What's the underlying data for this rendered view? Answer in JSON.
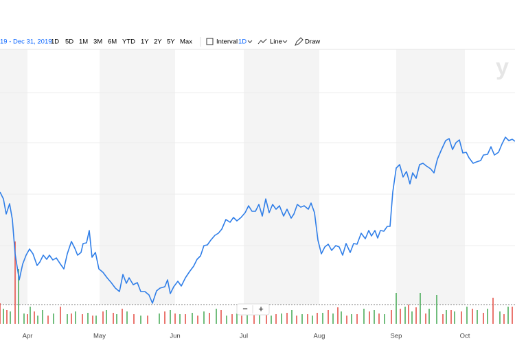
{
  "toolbar": {
    "date_range": "19 - Dec 31, 2019",
    "ranges": [
      "1D",
      "5D",
      "1M",
      "3M",
      "6M",
      "YTD",
      "1Y",
      "2Y",
      "5Y",
      "Max"
    ],
    "interval": "Interval",
    "interval_value": "1D",
    "line": "Line",
    "draw": "Draw"
  },
  "watermark": "y",
  "zoom": {
    "minus": "−",
    "plus": "+"
  },
  "chart_data": {
    "type": "line",
    "color": "#2f7ee8",
    "xlim": [
      0,
      750
    ],
    "ylim": [
      0,
      400
    ],
    "month_labels": [
      "Apr",
      "May",
      "Jun",
      "Jul",
      "Aug",
      "Sep",
      "Oct"
    ],
    "month_x": [
      40,
      145,
      255,
      355,
      465,
      577,
      677
    ],
    "x": [
      0,
      5,
      9,
      14,
      18,
      22,
      28,
      33,
      38,
      43,
      48,
      54,
      58,
      63,
      68,
      72,
      77,
      82,
      88,
      93,
      98,
      104,
      109,
      113,
      118,
      121,
      126,
      130,
      134,
      139,
      144,
      150,
      156,
      162,
      168,
      174,
      179,
      184,
      188,
      194,
      200,
      205,
      211,
      217,
      222,
      228,
      233,
      240,
      244,
      248,
      253,
      259,
      264,
      270,
      276,
      282,
      287,
      292,
      297,
      302,
      307,
      313,
      318,
      323,
      329,
      335,
      340,
      345,
      351,
      357,
      362,
      367,
      372,
      377,
      382,
      387,
      392,
      397,
      402,
      407,
      413,
      418,
      424,
      428,
      433,
      438,
      443,
      449,
      453,
      458,
      463,
      468,
      473,
      478,
      483,
      489,
      494,
      499,
      504,
      510,
      515,
      520,
      526,
      532,
      537,
      541,
      546,
      550,
      554,
      559,
      564,
      568,
      572,
      577,
      582,
      587,
      592,
      597,
      601,
      606,
      611,
      616,
      621,
      627,
      632,
      637,
      643,
      649,
      654,
      659,
      664,
      669,
      674,
      679,
      683,
      689,
      694,
      700,
      704,
      710,
      715,
      720,
      726,
      731,
      736,
      741,
      746,
      750
    ],
    "values": [
      192,
      182,
      160,
      175,
      152,
      102,
      64,
      87,
      100,
      109,
      102,
      85,
      90,
      100,
      94,
      100,
      93,
      96,
      87,
      80,
      102,
      120,
      110,
      100,
      104,
      117,
      118,
      136,
      97,
      104,
      80,
      75,
      67,
      60,
      52,
      47,
      72,
      59,
      67,
      57,
      60,
      47,
      47,
      42,
      30,
      48,
      52,
      54,
      64,
      44,
      54,
      62,
      55,
      67,
      76,
      84,
      94,
      99,
      114,
      115,
      122,
      129,
      132,
      138,
      152,
      148,
      155,
      150,
      155,
      162,
      172,
      164,
      164,
      174,
      157,
      182,
      162,
      174,
      167,
      172,
      157,
      167,
      154,
      160,
      174,
      170,
      172,
      167,
      176,
      162,
      122,
      102,
      112,
      116,
      107,
      114,
      112,
      100,
      117,
      104,
      117,
      116,
      132,
      124,
      136,
      128,
      136,
      125,
      136,
      135,
      142,
      142,
      192,
      227,
      232,
      214,
      222,
      204,
      220,
      212,
      232,
      234,
      230,
      226,
      220,
      240,
      254,
      267,
      270,
      254,
      264,
      268,
      249,
      250,
      242,
      234,
      236,
      238,
      246,
      247,
      258,
      246,
      250,
      262,
      272,
      267,
      269,
      266
    ],
    "volume": {
      "up_color": "#4dad5b",
      "down_color": "#e5534b",
      "up_x": [
        5,
        15,
        27,
        35,
        44,
        55,
        62,
        78,
        98,
        110,
        128,
        140,
        155,
        170,
        185,
        205,
        232,
        248,
        262,
        280,
        297,
        315,
        330,
        345,
        360,
        378,
        395,
        410,
        425,
        440,
        455,
        470,
        485,
        497,
        512,
        530,
        545,
        560,
        577,
        590,
        600,
        612,
        625,
        636,
        650,
        662,
        680,
        695,
        710,
        728,
        740
      ],
      "up_values": [
        22,
        18,
        80,
        15,
        25,
        12,
        20,
        15,
        14,
        18,
        16,
        12,
        20,
        14,
        18,
        12,
        15,
        20,
        14,
        16,
        18,
        22,
        12,
        15,
        14,
        18,
        12,
        15,
        20,
        14,
        12,
        16,
        15,
        18,
        14,
        22,
        20,
        14,
        45,
        25,
        18,
        45,
        22,
        42,
        20,
        18,
        25,
        20,
        22,
        18,
        25
      ],
      "down_x": [
        0,
        10,
        22,
        40,
        50,
        70,
        88,
        104,
        120,
        135,
        150,
        165,
        178,
        195,
        215,
        240,
        255,
        270,
        288,
        305,
        322,
        338,
        352,
        370,
        388,
        402,
        418,
        432,
        448,
        462,
        478,
        492,
        505,
        520,
        538,
        552,
        570,
        583,
        595,
        606,
        620,
        645,
        657,
        672,
        688,
        704,
        718,
        734,
        746
      ],
      "down_values": [
        30,
        20,
        120,
        14,
        18,
        12,
        25,
        15,
        14,
        12,
        18,
        16,
        22,
        14,
        12,
        18,
        15,
        14,
        12,
        16,
        20,
        14,
        12,
        18,
        15,
        14,
        16,
        12,
        14,
        16,
        20,
        24,
        12,
        14,
        18,
        15,
        20,
        22,
        28,
        24,
        15,
        14,
        20,
        18,
        22,
        16,
        38,
        14,
        25
      ]
    }
  }
}
